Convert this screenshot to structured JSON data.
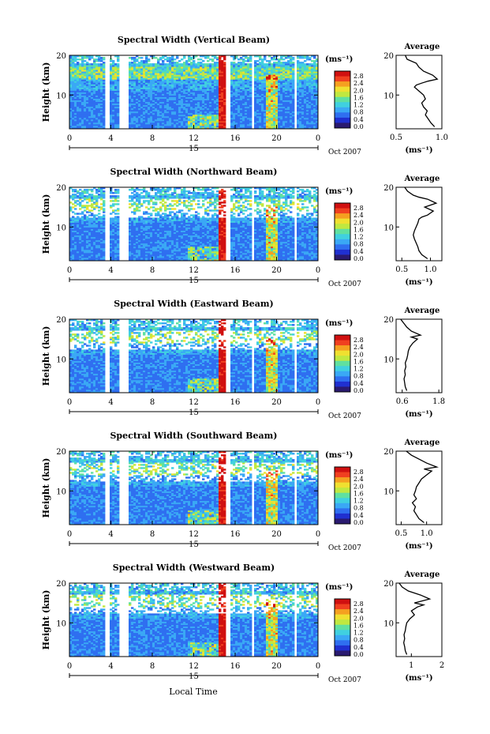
{
  "figure": {
    "xlabel": "Local Time",
    "date_label": "Oct 2007",
    "day_label": "15",
    "ylabel": "Height (km)",
    "colorbar_unit": "(ms⁻¹)",
    "colorbar_ticks": [
      "2.8",
      "2.4",
      "2.0",
      "1.6",
      "1.2",
      "0.8",
      "0.4",
      "0.0"
    ],
    "colors": {
      "scale": [
        "#2a1a70",
        "#2030d0",
        "#2f6ff0",
        "#3aa8f5",
        "#40d0e0",
        "#60e0a0",
        "#c0e840",
        "#f0e030",
        "#f5a020",
        "#f04020",
        "#d01010"
      ]
    }
  },
  "chart_data": [
    {
      "type": "heatmap",
      "title": "Spectral Width (Vertical Beam)",
      "xlabel": "Local Time",
      "ylabel": "Height (km)",
      "xlim": [
        0,
        24
      ],
      "ylim": [
        1.5,
        20
      ],
      "xticks": [
        "0",
        "4",
        "8",
        "12",
        "16",
        "20",
        "0"
      ],
      "yticks": [
        "10",
        "20"
      ],
      "data_gaps_hours": [
        [
          3.5,
          3.9
        ],
        [
          4.8,
          5.7
        ],
        [
          15.0,
          15.6
        ],
        [
          17.5,
          17.8
        ],
        [
          21.6,
          21.9
        ]
      ],
      "profile": {
        "type": "line",
        "title": "Average",
        "xlabel": "(ms⁻¹)",
        "xlim": [
          0.5,
          1.0
        ],
        "xticks": [
          "0.5",
          "1.0"
        ],
        "yticks": [
          "10",
          "20"
        ],
        "x": [
          0.92,
          0.88,
          0.85,
          0.82,
          0.84,
          0.8,
          0.78,
          0.82,
          0.8,
          0.75,
          0.7,
          0.72,
          0.78,
          0.85,
          0.95,
          0.9,
          0.8,
          0.75,
          0.72,
          0.62,
          0.6
        ],
        "y": [
          2,
          3,
          4,
          5,
          6,
          7,
          8,
          9,
          10,
          11,
          12,
          12.5,
          13,
          13.5,
          14,
          15,
          16,
          17,
          18,
          19,
          20
        ]
      }
    },
    {
      "type": "heatmap",
      "title": "Spectral Width (Northward Beam)",
      "xlabel": "Local Time",
      "ylabel": "Height (km)",
      "xlim": [
        0,
        24
      ],
      "ylim": [
        1.5,
        20
      ],
      "xticks": [
        "0",
        "4",
        "8",
        "12",
        "16",
        "20",
        "0"
      ],
      "yticks": [
        "10",
        "20"
      ],
      "data_gaps_hours": [
        [
          3.5,
          3.9
        ],
        [
          4.8,
          5.7
        ],
        [
          15.0,
          15.6
        ],
        [
          17.5,
          17.8
        ],
        [
          21.6,
          21.9
        ]
      ],
      "profile": {
        "type": "line",
        "title": "Average",
        "xlabel": "(ms⁻¹)",
        "xlim": [
          0.4,
          1.2
        ],
        "xticks": [
          "0.5",
          "1.0"
        ],
        "yticks": [
          "10",
          "20"
        ],
        "x": [
          0.95,
          0.85,
          0.8,
          0.78,
          0.75,
          0.72,
          0.7,
          0.72,
          0.75,
          0.78,
          0.8,
          0.85,
          0.95,
          1.05,
          0.9,
          1.1,
          0.95,
          0.8,
          0.7,
          0.6,
          0.55
        ],
        "y": [
          2,
          3,
          4,
          5,
          6,
          7,
          8,
          9,
          10,
          11,
          12,
          12.5,
          13,
          14,
          15,
          16,
          17,
          17.5,
          18,
          19,
          20
        ]
      }
    },
    {
      "type": "heatmap",
      "title": "Spectral Width (Eastward Beam)",
      "xlabel": "Local Time",
      "ylabel": "Height (km)",
      "xlim": [
        0,
        24
      ],
      "ylim": [
        1.5,
        20
      ],
      "xticks": [
        "0",
        "4",
        "8",
        "12",
        "16",
        "20",
        "0"
      ],
      "yticks": [
        "10",
        "20"
      ],
      "data_gaps_hours": [
        [
          3.5,
          3.9
        ],
        [
          4.8,
          5.7
        ],
        [
          15.0,
          15.6
        ],
        [
          17.5,
          17.8
        ],
        [
          21.6,
          21.9
        ]
      ],
      "profile": {
        "type": "line",
        "title": "Average",
        "xlabel": "(ms⁻¹)",
        "xlim": [
          0.4,
          1.9
        ],
        "xticks": [
          "0.6",
          "1.8"
        ],
        "yticks": [
          "10",
          "20"
        ],
        "x": [
          0.75,
          0.7,
          0.68,
          0.66,
          0.7,
          0.68,
          0.72,
          0.7,
          0.75,
          0.78,
          0.8,
          0.85,
          0.95,
          1.1,
          0.9,
          1.2,
          0.9,
          0.75,
          0.65,
          0.55
        ],
        "y": [
          2,
          3,
          4,
          5,
          6,
          7,
          8,
          9,
          10,
          11,
          12,
          13,
          14,
          15,
          15.5,
          16,
          17,
          18,
          19,
          20
        ]
      }
    },
    {
      "type": "heatmap",
      "title": "Spectral Width (Southward Beam)",
      "xlabel": "Local Time",
      "ylabel": "Height (km)",
      "xlim": [
        0,
        24
      ],
      "ylim": [
        1.5,
        20
      ],
      "xticks": [
        "0",
        "4",
        "8",
        "12",
        "16",
        "20",
        "0"
      ],
      "yticks": [
        "10",
        "20"
      ],
      "data_gaps_hours": [
        [
          3.5,
          3.9
        ],
        [
          4.8,
          5.7
        ],
        [
          15.0,
          15.6
        ],
        [
          17.5,
          17.8
        ],
        [
          21.6,
          21.9
        ]
      ],
      "profile": {
        "type": "line",
        "title": "Average",
        "xlabel": "(ms⁻¹)",
        "xlim": [
          0.4,
          1.3
        ],
        "xticks": [
          "0.5",
          "1.0"
        ],
        "yticks": [
          "10",
          "20"
        ],
        "x": [
          0.95,
          0.85,
          0.8,
          0.75,
          0.78,
          0.72,
          0.8,
          0.75,
          0.78,
          0.8,
          0.85,
          0.9,
          1.0,
          1.1,
          0.95,
          1.2,
          1.0,
          0.85,
          0.7,
          0.6
        ],
        "y": [
          2,
          3,
          4,
          5,
          6,
          7,
          8,
          9,
          10,
          11,
          12,
          13,
          14,
          15,
          15.5,
          16,
          17,
          18,
          19,
          20
        ]
      }
    },
    {
      "type": "heatmap",
      "title": "Spectral Width (Westward Beam)",
      "xlabel": "Local Time",
      "ylabel": "Height (km)",
      "xlim": [
        0,
        24
      ],
      "ylim": [
        1.5,
        20
      ],
      "xticks": [
        "0",
        "4",
        "8",
        "12",
        "16",
        "20",
        "0"
      ],
      "yticks": [
        "10",
        "20"
      ],
      "data_gaps_hours": [
        [
          3.5,
          3.9
        ],
        [
          4.8,
          5.7
        ],
        [
          15.0,
          15.6
        ],
        [
          17.5,
          17.8
        ],
        [
          21.6,
          21.9
        ]
      ],
      "profile": {
        "type": "line",
        "title": "Average",
        "xlabel": "(ms⁻¹)",
        "xlim": [
          0.5,
          2.0
        ],
        "xticks": [
          "1",
          "2"
        ],
        "yticks": [
          "10",
          "20"
        ],
        "x": [
          0.85,
          0.8,
          0.78,
          0.75,
          0.78,
          0.76,
          0.8,
          0.82,
          0.85,
          0.95,
          1.1,
          1.0,
          1.2,
          1.4,
          1.1,
          1.6,
          1.3,
          0.9,
          0.7,
          0.6
        ],
        "y": [
          2,
          3,
          4,
          5,
          6,
          7,
          8,
          9,
          10,
          11,
          12,
          13,
          14,
          14.5,
          15,
          16,
          17,
          18,
          19,
          20
        ]
      }
    }
  ]
}
